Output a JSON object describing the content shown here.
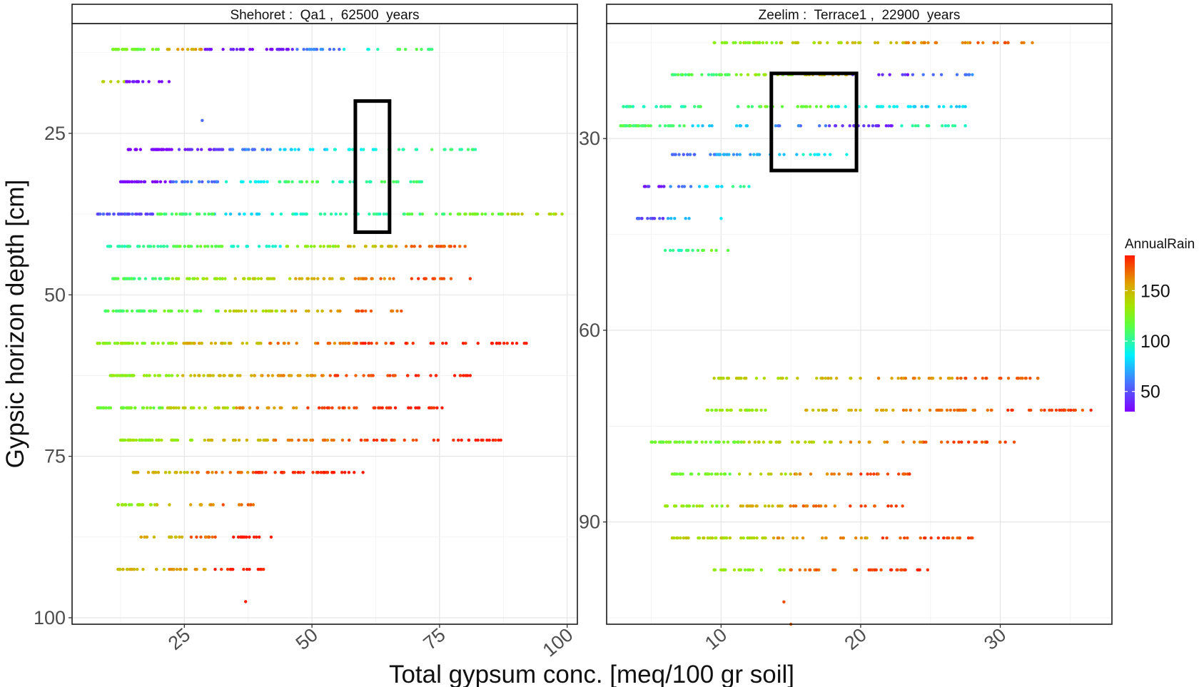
{
  "chart_data": {
    "type": "scatter",
    "xlabel": "Total gypsum conc. [meq/100 gr soil]",
    "ylabel": "Gypsic horizon depth [cm]",
    "color_variable": "AnnualRain",
    "legend": {
      "title": "AnnualRain",
      "position": "right",
      "ticks": [
        "50",
        "100",
        "150"
      ],
      "range": [
        30,
        185
      ],
      "colormap": "rainbow (purple → blue → cyan → green → yellow-green → orange → red)"
    },
    "grid": true,
    "panels": [
      {
        "strip": "Shehoret :  Qa1 ,  62500  years",
        "xlim": [
          3,
          102
        ],
        "ylim": [
          101,
          8
        ],
        "y_reversed": true,
        "xticks": [
          "25",
          "50",
          "75",
          "100"
        ],
        "yticks": [
          "25",
          "50",
          "75",
          "100"
        ],
        "highlight_box": {
          "x": [
            58.5,
            65.2
          ],
          "y": [
            20,
            40.3
          ]
        },
        "rows": [
          {
            "y": 12,
            "x": [
              11,
              73.5
            ],
            "rain": [
              120,
              155,
              40,
              35,
              60,
              95,
              110
            ]
          },
          {
            "y": 17,
            "x": [
              9,
              22
            ],
            "rain": [
              140,
              35,
              30
            ]
          },
          {
            "y": 23,
            "x": [
              28.5,
              28.5
            ],
            "rain": [
              60
            ]
          },
          {
            "y": 27.5,
            "x": [
              14,
              82
            ],
            "rain": [
              30,
              40,
              60,
              80,
              90,
              100,
              105
            ]
          },
          {
            "y": 32.5,
            "x": [
              12.5,
              71.5
            ],
            "rain": [
              30,
              60,
              90,
              110,
              100,
              105
            ]
          },
          {
            "y": 37.5,
            "x": [
              8,
              99
            ],
            "rain": [
              50,
              110,
              80,
              95,
              100,
              110,
              120,
              140
            ]
          },
          {
            "y": 42.5,
            "x": [
              10,
              80
            ],
            "rain": [
              100,
              115,
              90,
              130,
              150,
              170
            ]
          },
          {
            "y": 47.5,
            "x": [
              11,
              81
            ],
            "rain": [
              110,
              130,
              140,
              155,
              165,
              175
            ]
          },
          {
            "y": 52.5,
            "x": [
              9.5,
              67.5
            ],
            "rain": [
              110,
              120,
              140,
              155,
              170
            ]
          },
          {
            "y": 57.5,
            "x": [
              8,
              92
            ],
            "rain": [
              130,
              150,
              165,
              180,
              185
            ]
          },
          {
            "y": 62.5,
            "x": [
              10.5,
              81
            ],
            "rain": [
              130,
              150,
              160,
              175,
              185
            ]
          },
          {
            "y": 67.5,
            "x": [
              8,
              75.5
            ],
            "rain": [
              120,
              140,
              160,
              175,
              185
            ]
          },
          {
            "y": 72.5,
            "x": [
              12.5,
              87
            ],
            "rain": [
              130,
              150,
              165,
              175,
              185
            ]
          },
          {
            "y": 77.5,
            "x": [
              15,
              60
            ],
            "rain": [
              150,
              165,
              180,
              185
            ]
          },
          {
            "y": 82.5,
            "x": [
              12,
              38.5
            ],
            "rain": [
              130,
              145,
              160,
              170
            ]
          },
          {
            "y": 87.5,
            "x": [
              16.5,
              42
            ],
            "rain": [
              150,
              170,
              185
            ]
          },
          {
            "y": 92.5,
            "x": [
              12,
              40.5
            ],
            "rain": [
              150,
              160,
              185
            ]
          },
          {
            "y": 97.5,
            "x": [
              37,
              37
            ],
            "rain": [
              185
            ]
          }
        ]
      },
      {
        "strip": "Zeelim :  Terrace1 ,  22900  years",
        "xlim": [
          1.8,
          38
        ],
        "ylim": [
          106,
          12
        ],
        "y_reversed": true,
        "xticks": [
          "10",
          "20",
          "30"
        ],
        "yticks": [
          "30",
          "60",
          "90"
        ],
        "highlight_box": {
          "x": [
            13.6,
            19.7
          ],
          "y": [
            19.8,
            35
          ]
        },
        "rows": [
          {
            "y": 15,
            "x": [
              9.5,
              32.3
            ],
            "rain": [
              130,
              140,
              150,
              160,
              170
            ]
          },
          {
            "y": 20,
            "x": [
              6.5,
              28
            ],
            "rain": [
              110,
              130,
              150,
              40,
              60
            ]
          },
          {
            "y": 25,
            "x": [
              3,
              27.5
            ],
            "rain": [
              100,
              110,
              120,
              90,
              80
            ]
          },
          {
            "y": 28,
            "x": [
              2.8,
              27.5
            ],
            "rain": [
              110,
              80,
              60,
              40,
              100
            ]
          },
          {
            "y": 32.5,
            "x": [
              6.5,
              19
            ],
            "rain": [
              60,
              70,
              80,
              90
            ]
          },
          {
            "y": 37.5,
            "x": [
              4.5,
              12
            ],
            "rain": [
              40,
              60,
              80,
              100
            ]
          },
          {
            "y": 42.5,
            "x": [
              4,
              10
            ],
            "rain": [
              50,
              70,
              90
            ]
          },
          {
            "y": 47.5,
            "x": [
              6,
              10.5
            ],
            "rain": [
              100,
              110,
              120
            ]
          },
          {
            "y": 67.5,
            "x": [
              9.5,
              32.7
            ],
            "rain": [
              140,
              150,
              160,
              170
            ]
          },
          {
            "y": 72.5,
            "x": [
              9,
              36.5
            ],
            "rain": [
              130,
              150,
              165,
              175
            ]
          },
          {
            "y": 77.5,
            "x": [
              5,
              31
            ],
            "rain": [
              120,
              140,
              160,
              175
            ]
          },
          {
            "y": 82.5,
            "x": [
              6.5,
              23.5
            ],
            "rain": [
              120,
              140,
              160,
              175
            ]
          },
          {
            "y": 87.5,
            "x": [
              6,
              23
            ],
            "rain": [
              130,
              150,
              165,
              175
            ]
          },
          {
            "y": 92.5,
            "x": [
              6.5,
              28
            ],
            "rain": [
              140,
              160,
              175
            ]
          },
          {
            "y": 97.5,
            "x": [
              9.5,
              24.8
            ],
            "rain": [
              130,
              170,
              180
            ]
          },
          {
            "y": 102.5,
            "x": [
              14.5,
              14.5
            ],
            "rain": [
              170
            ]
          },
          {
            "y": 106,
            "x": [
              15,
              15
            ],
            "rain": [
              165
            ]
          }
        ]
      }
    ]
  }
}
